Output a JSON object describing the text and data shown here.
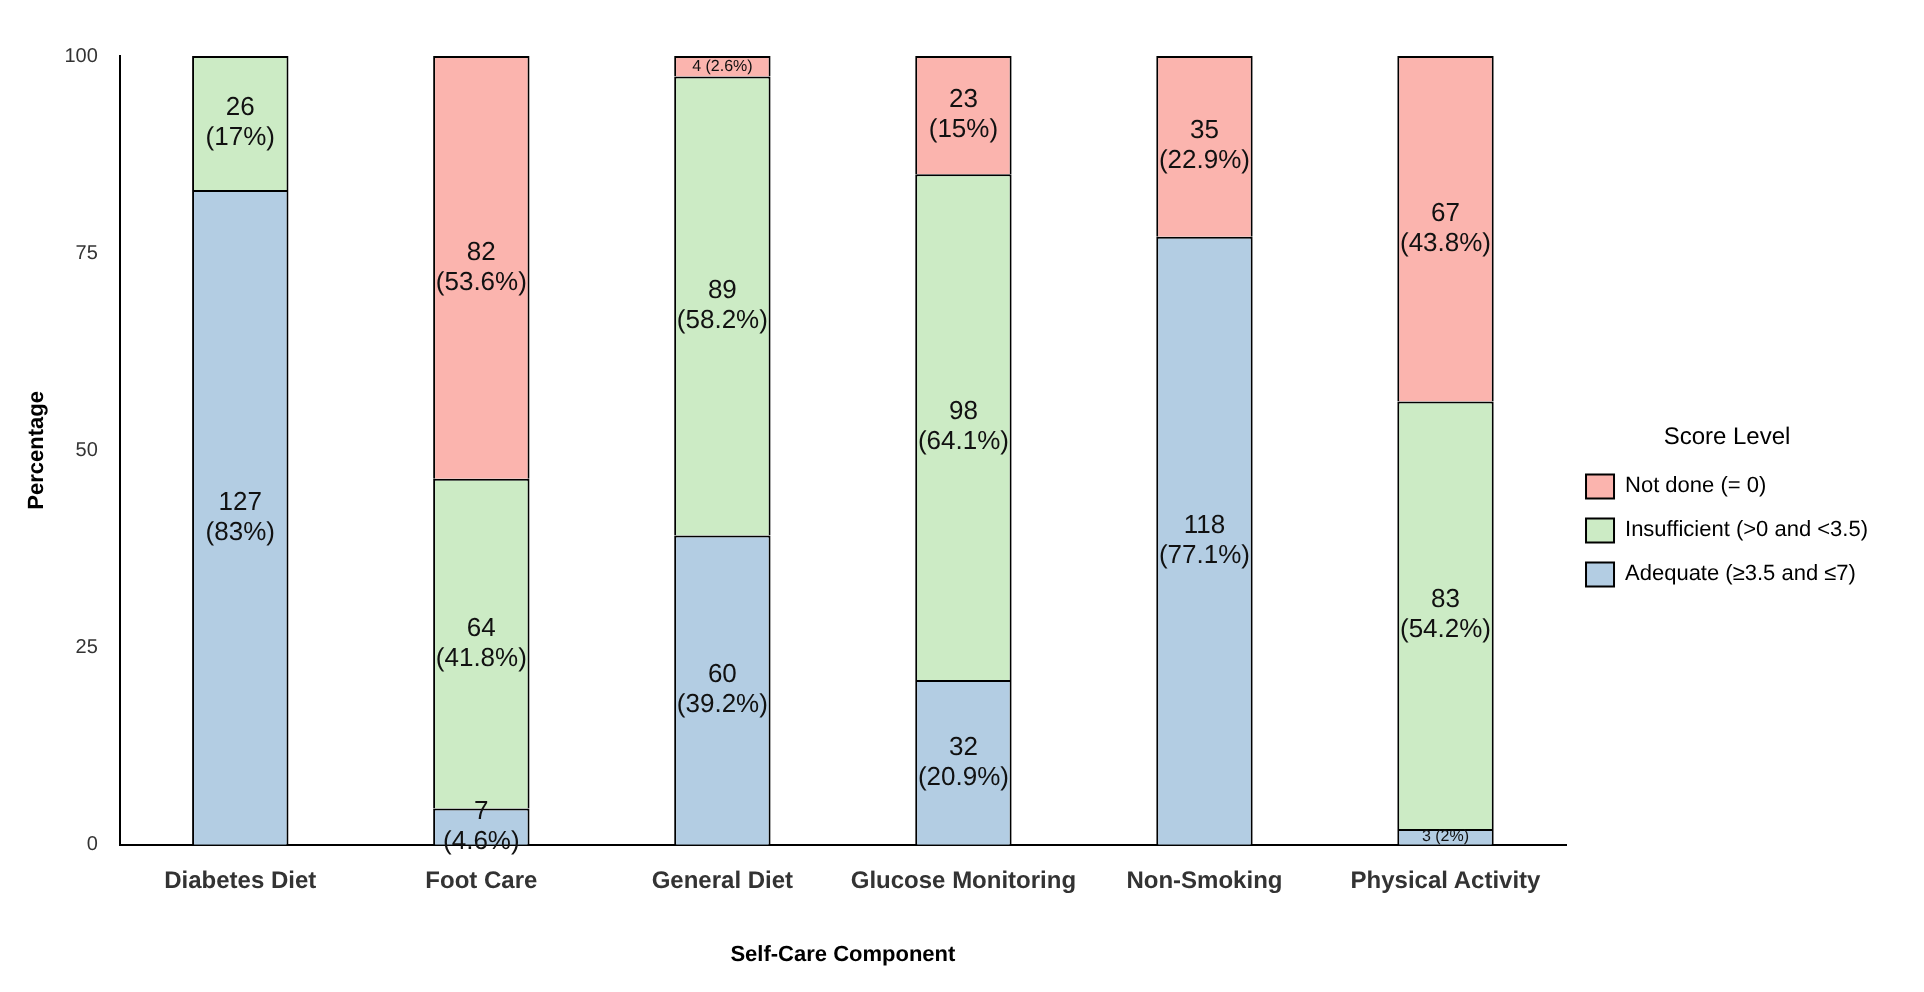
{
  "chart_data": {
    "type": "bar",
    "stacked": true,
    "xlabel": "Self-Care Component",
    "ylabel": "Percentage",
    "legend_title": "Score Level",
    "legend": "right",
    "grid": false,
    "categories": [
      "Diabetes Diet",
      "Foot Care",
      "General Diet",
      "Glucose Monitoring",
      "Non-Smoking",
      "Physical Activity"
    ],
    "ylim": [
      0,
      100
    ],
    "yticks": [
      0,
      25,
      50,
      75,
      100
    ],
    "series": [
      {
        "name": "Adequate (≥3.5 and ≤7)",
        "color": "#b3cde3",
        "values": [
          83,
          4.6,
          39.2,
          20.9,
          77.1,
          2
        ],
        "value_labels": [
          "127\n(83%)",
          "7\n(4.6%)",
          "60\n(39.2%)",
          "32\n(20.9%)",
          "118\n(77.1%)",
          "3 (2%)"
        ]
      },
      {
        "name": "Insufficient (>0 and <3.5)",
        "color": "#ccebc5",
        "values": [
          17,
          41.8,
          58.2,
          64.1,
          0,
          54.2
        ],
        "value_labels": [
          "26\n(17%)",
          "64\n(41.8%)",
          "89\n(58.2%)",
          "98\n(64.1%)",
          null,
          "83\n(54.2%)"
        ]
      },
      {
        "name": "Not done (= 0)",
        "color": "#fbb4ae",
        "values": [
          0,
          53.6,
          2.6,
          15,
          22.9,
          43.8
        ],
        "value_labels": [
          null,
          "82\n(53.6%)",
          "4 (2.6%)",
          "23\n(15%)",
          "35\n(22.9%)",
          "67\n(43.8%)"
        ]
      }
    ]
  }
}
